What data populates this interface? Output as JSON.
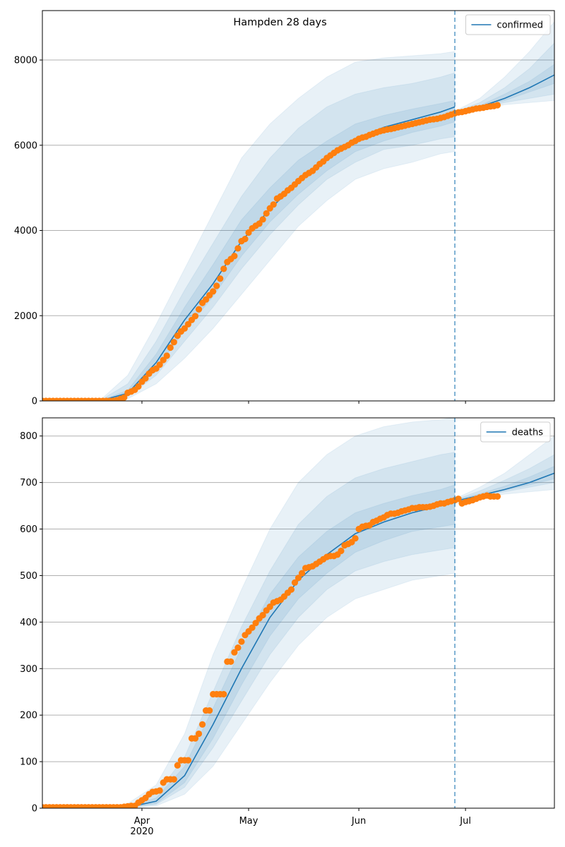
{
  "chart_data": [
    {
      "type": "line",
      "title": "Hampden 28 days",
      "xlim": [
        63,
        207
      ],
      "ylim": [
        0,
        9160
      ],
      "yticks": [
        0,
        2000,
        4000,
        6000,
        8000
      ],
      "xticks": [
        91,
        121,
        152,
        182
      ],
      "grid": true,
      "legend": "upper right",
      "vline": {
        "x": 179,
        "color": "#1f77b4"
      },
      "series": [
        {
          "name": "confirmed",
          "color": "#1f77b4",
          "x": [
            63,
            71,
            79,
            87,
            95,
            103,
            111,
            119,
            127,
            135,
            143,
            151,
            159,
            167,
            175,
            179
          ],
          "values": [
            0,
            0,
            0,
            180,
            900,
            1900,
            2750,
            3750,
            4500,
            5150,
            5700,
            6150,
            6420,
            6600,
            6780,
            6900
          ]
        },
        {
          "color": "#1f77b4",
          "x": [
            179,
            186,
            193,
            200,
            207
          ],
          "values": [
            6750,
            6900,
            7100,
            7350,
            7650
          ]
        }
      ],
      "bands": [
        {
          "color": "#1f77b4",
          "x": [
            63,
            71,
            79,
            87,
            95,
            103,
            111,
            119,
            127,
            135,
            143,
            151,
            159,
            167,
            175,
            179
          ],
          "lower": [
            0,
            0,
            0,
            50,
            400,
            1000,
            1700,
            2500,
            3300,
            4100,
            4700,
            5200,
            5450,
            5600,
            5800,
            5850
          ],
          "upper": [
            0,
            0,
            0,
            600,
            1800,
            3100,
            4400,
            5700,
            6500,
            7100,
            7600,
            7950,
            8050,
            8100,
            8150,
            8200
          ]
        },
        {
          "color": "#1f77b4",
          "x": [
            63,
            71,
            79,
            87,
            95,
            103,
            111,
            119,
            127,
            135,
            143,
            151,
            159,
            167,
            175,
            179
          ],
          "lower": [
            0,
            0,
            0,
            100,
            600,
            1400,
            2200,
            3100,
            3900,
            4600,
            5200,
            5600,
            5900,
            6000,
            6150,
            6200
          ],
          "upper": [
            0,
            0,
            0,
            400,
            1400,
            2600,
            3700,
            4800,
            5700,
            6400,
            6900,
            7200,
            7350,
            7450,
            7600,
            7700
          ]
        },
        {
          "color": "#1f77b4",
          "x": [
            63,
            71,
            79,
            87,
            95,
            103,
            111,
            119,
            127,
            135,
            143,
            151,
            159,
            167,
            175,
            179
          ],
          "lower": [
            0,
            0,
            0,
            140,
            750,
            1650,
            2450,
            3400,
            4200,
            4850,
            5400,
            5850,
            6100,
            6300,
            6450,
            6550
          ],
          "upper": [
            0,
            0,
            0,
            250,
            1100,
            2200,
            3200,
            4250,
            5000,
            5650,
            6100,
            6500,
            6700,
            6850,
            6980,
            7050
          ]
        },
        {
          "color": "#1f77b4",
          "x": [
            179,
            186,
            193,
            200,
            207
          ],
          "lower": [
            6700,
            6850,
            6950,
            7000,
            7050
          ],
          "upper": [
            6800,
            7100,
            7600,
            8200,
            8900
          ]
        },
        {
          "color": "#1f77b4",
          "x": [
            179,
            186,
            193,
            200,
            207
          ],
          "lower": [
            6730,
            6870,
            7000,
            7100,
            7200
          ],
          "upper": [
            6780,
            7000,
            7350,
            7800,
            8400
          ]
        },
        {
          "color": "#1f77b4",
          "x": [
            179,
            186,
            193,
            200,
            207
          ],
          "lower": [
            6740,
            6880,
            7050,
            7250,
            7450
          ],
          "upper": [
            6760,
            6930,
            7200,
            7500,
            7900
          ]
        }
      ],
      "points": {
        "color": "#ff7f0e",
        "x": [
          63,
          64,
          65,
          66,
          67,
          68,
          69,
          70,
          71,
          72,
          73,
          74,
          75,
          76,
          77,
          78,
          79,
          80,
          81,
          82,
          83,
          84,
          85,
          86,
          87,
          88,
          89,
          90,
          91,
          92,
          93,
          94,
          95,
          96,
          97,
          98,
          99,
          100,
          101,
          102,
          103,
          104,
          105,
          106,
          107,
          108,
          109,
          110,
          111,
          112,
          113,
          114,
          115,
          116,
          117,
          118,
          119,
          120,
          121,
          122,
          123,
          124,
          125,
          126,
          127,
          128,
          129,
          130,
          131,
          132,
          133,
          134,
          135,
          136,
          137,
          138,
          139,
          140,
          141,
          142,
          143,
          144,
          145,
          146,
          147,
          148,
          149,
          150,
          151,
          152,
          153,
          154,
          155,
          156,
          157,
          158,
          159,
          160,
          161,
          162,
          163,
          164,
          165,
          166,
          167,
          168,
          169,
          170,
          171,
          172,
          173,
          174,
          175,
          176,
          177,
          178,
          179,
          180,
          181,
          182,
          183,
          184,
          185,
          186,
          187,
          188,
          189,
          190,
          191
        ],
        "values": [
          0,
          0,
          0,
          0,
          0,
          0,
          0,
          0,
          0,
          0,
          0,
          0,
          0,
          0,
          0,
          0,
          0,
          0,
          0,
          0,
          5,
          20,
          50,
          80,
          190,
          220,
          260,
          340,
          450,
          530,
          640,
          720,
          760,
          850,
          960,
          1060,
          1250,
          1380,
          1530,
          1630,
          1700,
          1800,
          1900,
          1990,
          2150,
          2300,
          2380,
          2480,
          2570,
          2700,
          2870,
          3100,
          3260,
          3330,
          3400,
          3580,
          3750,
          3800,
          3950,
          4050,
          4110,
          4160,
          4260,
          4400,
          4520,
          4610,
          4750,
          4800,
          4860,
          4940,
          5000,
          5080,
          5160,
          5230,
          5300,
          5350,
          5400,
          5480,
          5560,
          5620,
          5700,
          5760,
          5820,
          5880,
          5920,
          5960,
          6000,
          6060,
          6100,
          6150,
          6180,
          6200,
          6240,
          6270,
          6300,
          6330,
          6350,
          6370,
          6380,
          6400,
          6420,
          6440,
          6460,
          6480,
          6500,
          6520,
          6540,
          6560,
          6580,
          6600,
          6610,
          6620,
          6640,
          6660,
          6690,
          6720,
          6750,
          6770,
          6780,
          6800,
          6820,
          6840,
          6860,
          6870,
          6880,
          6900,
          6910,
          6920,
          6940
        ]
      }
    },
    {
      "type": "line",
      "xlim": [
        63,
        207
      ],
      "ylim": [
        0,
        839
      ],
      "yticks": [
        0,
        100,
        200,
        300,
        400,
        500,
        600,
        700,
        800
      ],
      "xticks": [
        {
          "value": 91,
          "label": "Apr"
        },
        {
          "value": 121,
          "label": "May"
        },
        {
          "value": 152,
          "label": "Jun"
        },
        {
          "value": 182,
          "label": "Jul"
        }
      ],
      "xsublabel": {
        "value": 91,
        "label": "2020"
      },
      "grid": true,
      "legend": "upper right",
      "vline": {
        "x": 179,
        "color": "#1f77b4"
      },
      "series": [
        {
          "name": "deaths",
          "color": "#1f77b4",
          "x": [
            63,
            71,
            79,
            87,
            95,
            103,
            111,
            119,
            127,
            135,
            143,
            151,
            159,
            167,
            175,
            179
          ],
          "values": [
            0,
            0,
            0,
            2,
            15,
            70,
            180,
            300,
            410,
            490,
            545,
            590,
            615,
            635,
            650,
            660
          ]
        },
        {
          "color": "#1f77b4",
          "x": [
            179,
            186,
            193,
            200,
            207
          ],
          "values": [
            660,
            672,
            685,
            700,
            720
          ]
        }
      ],
      "bands": [
        {
          "color": "#1f77b4",
          "x": [
            63,
            71,
            79,
            87,
            95,
            103,
            111,
            119,
            127,
            135,
            143,
            151,
            159,
            167,
            175,
            179
          ],
          "lower": [
            0,
            0,
            0,
            0,
            5,
            30,
            90,
            180,
            270,
            350,
            410,
            450,
            470,
            490,
            500,
            505
          ],
          "upper": [
            0,
            0,
            0,
            10,
            50,
            160,
            330,
            470,
            600,
            700,
            760,
            800,
            820,
            830,
            835,
            840
          ]
        },
        {
          "color": "#1f77b4",
          "x": [
            63,
            71,
            79,
            87,
            95,
            103,
            111,
            119,
            127,
            135,
            143,
            151,
            159,
            167,
            175,
            179
          ],
          "lower": [
            0,
            0,
            0,
            1,
            8,
            45,
            130,
            230,
            330,
            410,
            470,
            510,
            530,
            545,
            555,
            560
          ],
          "upper": [
            0,
            0,
            0,
            5,
            30,
            110,
            250,
            390,
            510,
            610,
            670,
            710,
            730,
            745,
            760,
            765
          ]
        },
        {
          "color": "#1f77b4",
          "x": [
            63,
            71,
            79,
            87,
            95,
            103,
            111,
            119,
            127,
            135,
            143,
            151,
            159,
            167,
            175,
            179
          ],
          "lower": [
            0,
            0,
            0,
            1,
            10,
            55,
            150,
            265,
            370,
            450,
            505,
            550,
            575,
            595,
            605,
            610
          ],
          "upper": [
            0,
            0,
            0,
            3,
            22,
            90,
            215,
            345,
            460,
            540,
            595,
            635,
            655,
            672,
            685,
            695
          ]
        },
        {
          "color": "#1f77b4",
          "x": [
            179,
            186,
            193,
            200,
            207
          ],
          "lower": [
            655,
            668,
            675,
            680,
            685
          ],
          "upper": [
            665,
            690,
            720,
            760,
            800
          ]
        },
        {
          "color": "#1f77b4",
          "x": [
            179,
            186,
            193,
            200,
            207
          ],
          "lower": [
            657,
            670,
            680,
            690,
            700
          ],
          "upper": [
            663,
            682,
            705,
            730,
            760
          ]
        },
        {
          "color": "#1f77b4",
          "x": [
            179,
            186,
            193,
            200,
            207
          ],
          "lower": [
            658,
            671,
            683,
            695,
            708
          ],
          "upper": [
            662,
            676,
            692,
            712,
            735
          ]
        }
      ],
      "points": {
        "color": "#ff7f0e",
        "x": [
          63,
          64,
          65,
          66,
          67,
          68,
          69,
          70,
          71,
          72,
          73,
          74,
          75,
          76,
          77,
          78,
          79,
          80,
          81,
          82,
          83,
          84,
          85,
          86,
          87,
          88,
          89,
          90,
          91,
          92,
          93,
          94,
          95,
          96,
          97,
          98,
          99,
          100,
          101,
          102,
          103,
          104,
          105,
          106,
          107,
          108,
          109,
          110,
          111,
          112,
          113,
          114,
          115,
          116,
          117,
          118,
          119,
          120,
          121,
          122,
          123,
          124,
          125,
          126,
          127,
          128,
          129,
          130,
          131,
          132,
          133,
          134,
          135,
          136,
          137,
          138,
          139,
          140,
          141,
          142,
          143,
          144,
          145,
          146,
          147,
          148,
          149,
          150,
          151,
          152,
          153,
          154,
          155,
          156,
          157,
          158,
          159,
          160,
          161,
          162,
          163,
          164,
          165,
          166,
          167,
          168,
          169,
          170,
          171,
          172,
          173,
          174,
          175,
          176,
          177,
          178,
          179,
          180,
          181,
          182,
          183,
          184,
          185,
          186,
          187,
          188,
          189,
          190,
          191
        ],
        "values": [
          2,
          2,
          2,
          2,
          2,
          2,
          2,
          2,
          2,
          2,
          2,
          2,
          2,
          2,
          2,
          2,
          2,
          2,
          2,
          2,
          2,
          2,
          2,
          3,
          4,
          5,
          5,
          12,
          17,
          22,
          30,
          35,
          36,
          38,
          55,
          62,
          62,
          62,
          92,
          103,
          103,
          103,
          150,
          150,
          160,
          180,
          210,
          210,
          245,
          245,
          245,
          245,
          315,
          315,
          335,
          345,
          358,
          372,
          380,
          388,
          398,
          408,
          415,
          425,
          433,
          442,
          445,
          448,
          455,
          463,
          470,
          485,
          495,
          505,
          516,
          518,
          520,
          525,
          530,
          535,
          540,
          542,
          542,
          545,
          553,
          565,
          568,
          572,
          580,
          600,
          605,
          607,
          608,
          615,
          618,
          622,
          625,
          630,
          633,
          633,
          635,
          638,
          640,
          642,
          645,
          645,
          647,
          647,
          647,
          648,
          650,
          653,
          655,
          655,
          658,
          660,
          662,
          665,
          655,
          658,
          660,
          662,
          665,
          668,
          670,
          672,
          670,
          670,
          670
        ]
      }
    }
  ]
}
